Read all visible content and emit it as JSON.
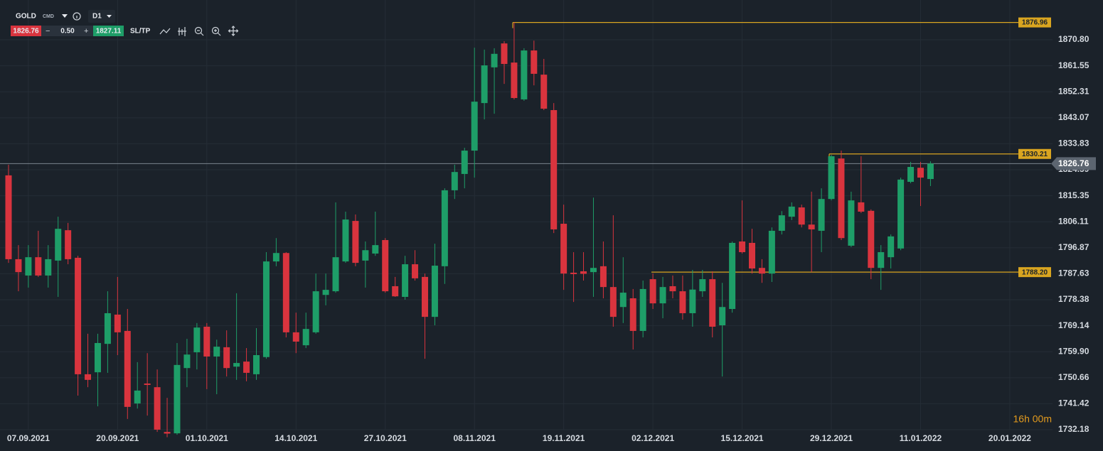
{
  "toolbar": {
    "symbol": "GOLD",
    "market": "CMD",
    "timeframe": "D1",
    "sell": "1826.76",
    "spread": "0.50",
    "buy": "1827.11",
    "sltp": "SL/TP"
  },
  "timer": "16h 00m",
  "chart_data": {
    "type": "candlestick",
    "up_color": "#1e9e68",
    "down_color": "#d9343e",
    "level_color": "#d9a520",
    "grid": true,
    "ylim": [
      1728.4,
      1884.94
    ],
    "yticks": [
      {
        "value": 1870.8,
        "label": "1870.80"
      },
      1861.55,
      1852.31,
      1843.07,
      1833.83,
      1824.59,
      1815.35,
      1806.11,
      1796.87,
      1787.63,
      1778.38,
      1769.14,
      {
        "value": 1759.9,
        "label": "1759.90"
      },
      1750.66,
      1741.42,
      1732.18
    ],
    "current_price": 1826.76,
    "levels": [
      1876.96,
      1830.21,
      {
        "value": 1788.2,
        "label": "1788.20"
      }
    ],
    "categories": [
      null,
      null,
      "07.09.2021",
      null,
      null,
      null,
      null,
      null,
      null,
      null,
      null,
      "20.09.2021",
      null,
      null,
      null,
      null,
      null,
      null,
      null,
      null,
      "01.10.2021",
      null,
      null,
      null,
      null,
      null,
      null,
      null,
      null,
      "14.10.2021",
      null,
      null,
      null,
      null,
      null,
      null,
      null,
      null,
      "27.10.2021",
      null,
      null,
      null,
      null,
      null,
      null,
      null,
      null,
      "08.11.2021",
      null,
      null,
      null,
      null,
      null,
      null,
      null,
      null,
      "19.11.2021",
      null,
      null,
      null,
      null,
      null,
      null,
      null,
      null,
      "02.12.2021",
      null,
      null,
      null,
      null,
      null,
      null,
      null,
      null,
      "15.12.2021",
      null,
      null,
      null,
      null,
      null,
      null,
      null,
      null,
      "29.12.2021",
      null,
      null,
      null,
      null,
      null,
      null,
      null,
      null,
      "11.01.2022",
      null,
      null,
      null,
      null,
      null,
      null,
      null,
      null,
      "20.01.2022",
      null,
      null,
      null,
      null
    ],
    "open": [
      1822.6,
      1792.8,
      1787.0,
      1793.5,
      1787.0,
      1792.3,
      1803.1,
      1793.3,
      1751.9,
      1752.6,
      1762.7,
      1773.1,
      1767.3,
      1741.5,
      1748.6,
      1747.3,
      1731.4,
      1730.9,
      1754.1,
      1759.7,
      1768.8,
      1758.2,
      1761.5,
      1754.6,
      1756.4,
      1751.9,
      1758.0,
      1792.0,
      1795.0,
      1766.8,
      1762.2,
      1766.8,
      1780.1,
      1781.4,
      1792.0,
      1806.4,
      1792.3,
      1794.8,
      1799.6,
      1783.2,
      1779.4,
      1791.0,
      1786.5,
      1772.3,
      1790.3,
      1817.3,
      1823.1,
      1831.4,
      1848.3,
      1861.0,
      1869.5,
      1862.7,
      1849.6,
      1867.0,
      1858.4,
      1845.8,
      1805.4,
      1788.0,
      1788.5,
      1788.2,
      1790.3,
      1782.9,
      1775.8,
      1778.9,
      1767.3,
      1785.7,
      1777.1,
      1783.2,
      1781.4,
      1773.6,
      1781.4,
      1785.7,
      1769.3,
      1775.1,
      1799.1,
      1798.6,
      1789.7,
      1787.7,
      1802.9,
      1807.9,
      1811.2,
      1805.1,
      1802.9,
      1814.2,
      1828.6,
      1797.6,
      1813.0,
      1810.0,
      1789.7,
      1793.5,
      1796.6,
      1820.3,
      1825.3,
      1821.3,
      null,
      null,
      null,
      null,
      null,
      null,
      null,
      null,
      null,
      null,
      null,
      null
    ],
    "high": [
      1826.4,
      1797.8,
      1797.8,
      1802.9,
      1797.8,
      1807.9,
      1805.7,
      1794.0,
      1766.3,
      1766.3,
      1781.4,
      1786.5,
      1775.1,
      1756.2,
      1759.4,
      1753.6,
      1743.5,
      1763.0,
      1764.5,
      1770.1,
      1770.1,
      1764.2,
      1767.5,
      1780.7,
      1761.2,
      1768.3,
      1795.3,
      1800.3,
      1795.3,
      1773.8,
      1773.8,
      1787.7,
      1787.7,
      1813.0,
      1809.7,
      1808.7,
      1799.1,
      1809.7,
      1800.3,
      1786.5,
      1794.0,
      1796.0,
      1787.7,
      1798.3,
      1818.0,
      1826.4,
      1832.4,
      1868.0,
      1867.3,
      1867.8,
      1870.3,
      1876.96,
      1867.8,
      1870.5,
      1864.0,
      1848.3,
      1812.2,
      1795.3,
      1795.3,
      1814.7,
      1799.1,
      1808.4,
      1793.5,
      1782.2,
      1785.2,
      1787.7,
      1786.5,
      1787.0,
      1787.0,
      1789.0,
      1789.0,
      1788.5,
      1784.4,
      1799.1,
      1813.7,
      1803.6,
      1792.8,
      1804.1,
      1809.9,
      1813.0,
      1812.2,
      1816.8,
      1818.0,
      1829.9,
      1831.4,
      1816.8,
      1829.4,
      1810.5,
      1797.8,
      1801.6,
      1821.8,
      1827.4,
      1827.4,
      1827.6,
      null,
      null,
      null,
      null,
      null,
      null,
      null,
      null,
      null,
      null,
      null,
      null
    ],
    "low": [
      1791.5,
      1781.4,
      1782.7,
      1786.5,
      1782.7,
      1779.4,
      1791.0,
      1744.3,
      1747.3,
      1740.5,
      1752.4,
      1758.7,
      1736.0,
      1739.7,
      1737.2,
      1731.4,
      1729.5,
      1730.4,
      1747.3,
      1753.6,
      1746.6,
      1744.8,
      1751.1,
      1749.9,
      1749.4,
      1749.9,
      1757.4,
      1790.3,
      1765.0,
      1759.4,
      1761.2,
      1766.3,
      1776.4,
      1780.9,
      1791.5,
      1790.3,
      1782.7,
      1794.0,
      1780.9,
      1779.4,
      1778.4,
      1785.2,
      1757.4,
      1769.3,
      1784.0,
      1814.2,
      1818.0,
      1821.8,
      1842.5,
      1844.5,
      1855.1,
      1849.6,
      1849.1,
      1854.6,
      1845.8,
      1802.1,
      1781.9,
      1777.6,
      1785.2,
      1779.4,
      1778.9,
      1768.8,
      1770.1,
      1760.7,
      1765.0,
      1775.1,
      1771.8,
      1778.9,
      1771.3,
      1768.8,
      1779.4,
      1765.0,
      1751.1,
      1773.8,
      1794.8,
      1787.7,
      1784.4,
      1784.7,
      1801.6,
      1806.7,
      1804.1,
      1788.2,
      1795.3,
      1813.7,
      1799.6,
      1797.1,
      1809.2,
      1785.7,
      1781.9,
      1789.5,
      1796.0,
      1819.8,
      1811.7,
      1818.8,
      null,
      null,
      null,
      null,
      null,
      null,
      null,
      null,
      null,
      null,
      null,
      null
    ],
    "close": [
      1792.8,
      1788.2,
      1793.5,
      1787.0,
      1792.8,
      1803.6,
      1792.8,
      1751.9,
      1749.9,
      1763.0,
      1773.6,
      1766.8,
      1740.3,
      1746.1,
      1748.1,
      1732.2,
      1730.8,
      1755.2,
      1758.9,
      1768.5,
      1758.2,
      1761.7,
      1754.1,
      1755.9,
      1752.4,
      1758.7,
      1792.0,
      1795.0,
      1766.8,
      1763.5,
      1768.0,
      1781.4,
      1781.9,
      1793.5,
      1806.9,
      1791.5,
      1796.0,
      1797.8,
      1781.4,
      1779.6,
      1791.0,
      1786.0,
      1772.3,
      1790.5,
      1817.3,
      1823.8,
      1831.4,
      1848.8,
      1861.7,
      1865.8,
      1862.2,
      1850.1,
      1867.0,
      1858.7,
      1846.3,
      1803.4,
      1787.7,
      1787.5,
      1787.6,
      1789.7,
      1782.9,
      1772.3,
      1780.9,
      1767.3,
      1782.2,
      1777.1,
      1782.9,
      1781.4,
      1773.6,
      1782.0,
      1785.7,
      1768.8,
      1775.8,
      1798.6,
      1795.3,
      1789.5,
      1787.7,
      1802.9,
      1808.4,
      1811.5,
      1805.1,
      1803.4,
      1814.2,
      1829.4,
      1800.3,
      1813.7,
      1809.7,
      1789.7,
      1795.3,
      1800.9,
      1821.1,
      1825.6,
      1821.8,
      1826.8,
      null,
      null,
      null,
      null,
      null,
      null,
      null,
      null,
      null,
      null,
      null,
      null
    ]
  }
}
